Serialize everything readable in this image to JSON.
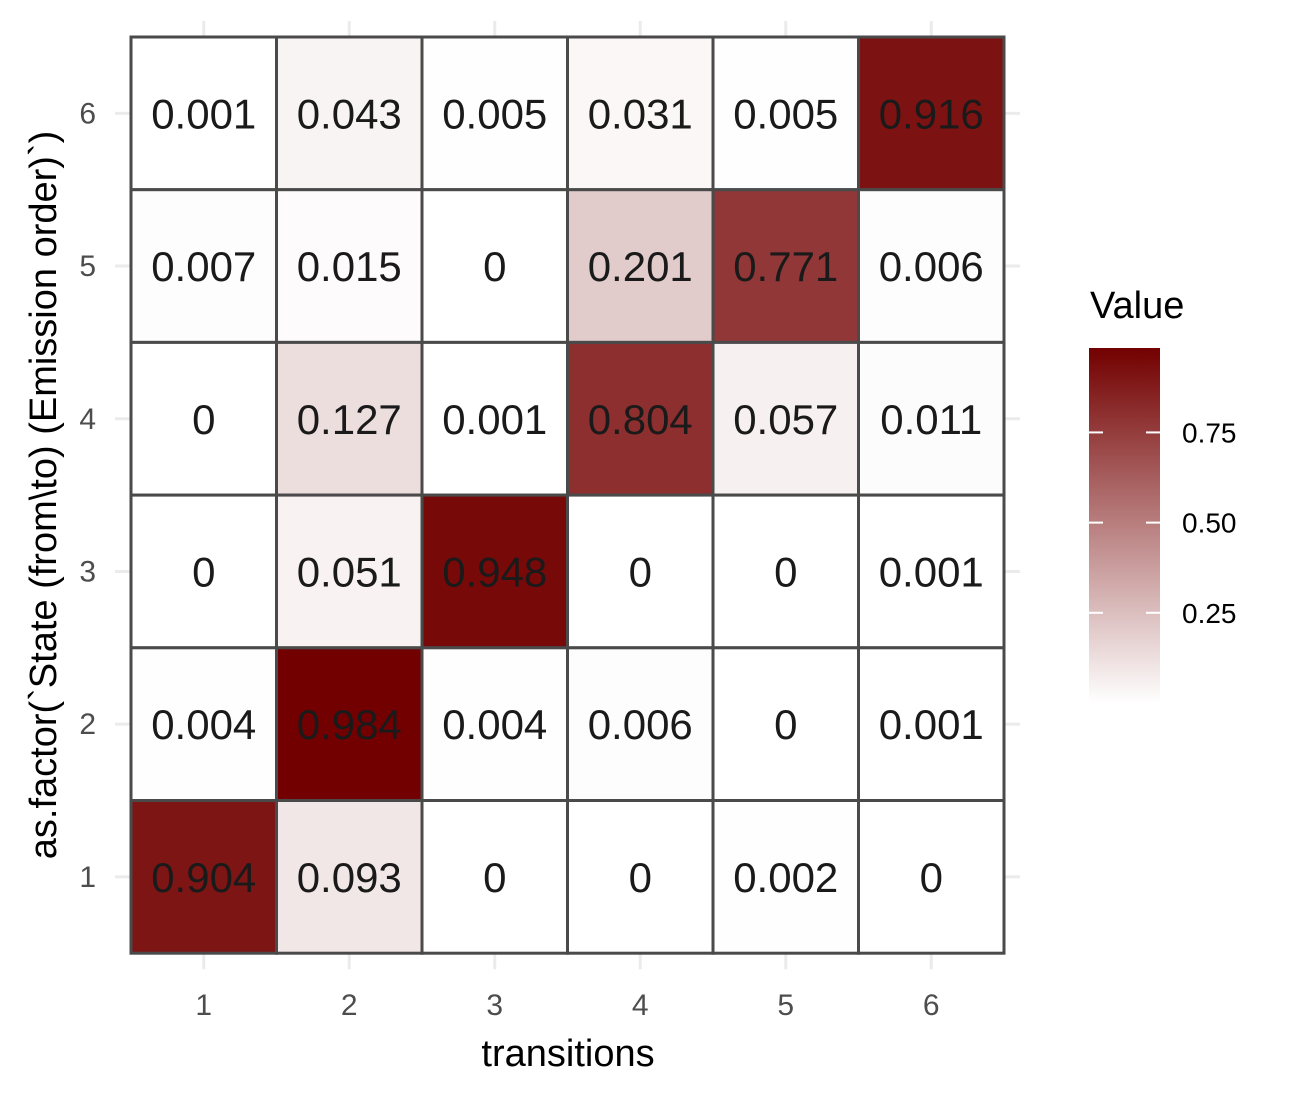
{
  "chart_data": {
    "type": "heatmap",
    "xlabel": "transitions",
    "ylabel": "as.factor(`State (from\\to) (Emission order)`)",
    "x_categories": [
      "1",
      "2",
      "3",
      "4",
      "5",
      "6"
    ],
    "y_categories": [
      "1",
      "2",
      "3",
      "4",
      "5",
      "6"
    ],
    "rows": [
      {
        "y": "6",
        "values": [
          0.001,
          0.043,
          0.005,
          0.031,
          0.005,
          0.916
        ],
        "labels": [
          "0.001",
          "0.043",
          "0.005",
          "0.031",
          "0.005",
          "0.916"
        ]
      },
      {
        "y": "5",
        "values": [
          0.007,
          0.015,
          0,
          0.201,
          0.771,
          0.006
        ],
        "labels": [
          "0.007",
          "0.015",
          "0",
          "0.201",
          "0.771",
          "0.006"
        ]
      },
      {
        "y": "4",
        "values": [
          0,
          0.127,
          0.001,
          0.804,
          0.057,
          0.011
        ],
        "labels": [
          "0",
          "0.127",
          "0.001",
          "0.804",
          "0.057",
          "0.011"
        ]
      },
      {
        "y": "3",
        "values": [
          0,
          0.051,
          0.948,
          0,
          0,
          0.001
        ],
        "labels": [
          "0",
          "0.051",
          "0.948",
          "0",
          "0",
          "0.001"
        ]
      },
      {
        "y": "2",
        "values": [
          0.004,
          0.984,
          0.004,
          0.006,
          0,
          0.001
        ],
        "labels": [
          "0.004",
          "0.984",
          "0.004",
          "0.006",
          "0",
          "0.001"
        ]
      },
      {
        "y": "1",
        "values": [
          0.904,
          0.093,
          0,
          0,
          0.002,
          0
        ],
        "labels": [
          "0.904",
          "0.093",
          "0",
          "0",
          "0.002",
          "0"
        ]
      }
    ],
    "legend": {
      "title": "Value",
      "breaks": [
        0.25,
        0.5,
        0.75
      ],
      "break_labels": [
        "0.25",
        "0.50",
        "0.75"
      ],
      "range": [
        0,
        0.984
      ],
      "low_color": "#ffffff",
      "high_color": "#730000",
      "position": "right"
    },
    "grid": true,
    "colors": {
      "cell_border": "#4a4a4a",
      "grid_line": "#ebebeb",
      "tick_text": "#4d4d4d"
    }
  }
}
